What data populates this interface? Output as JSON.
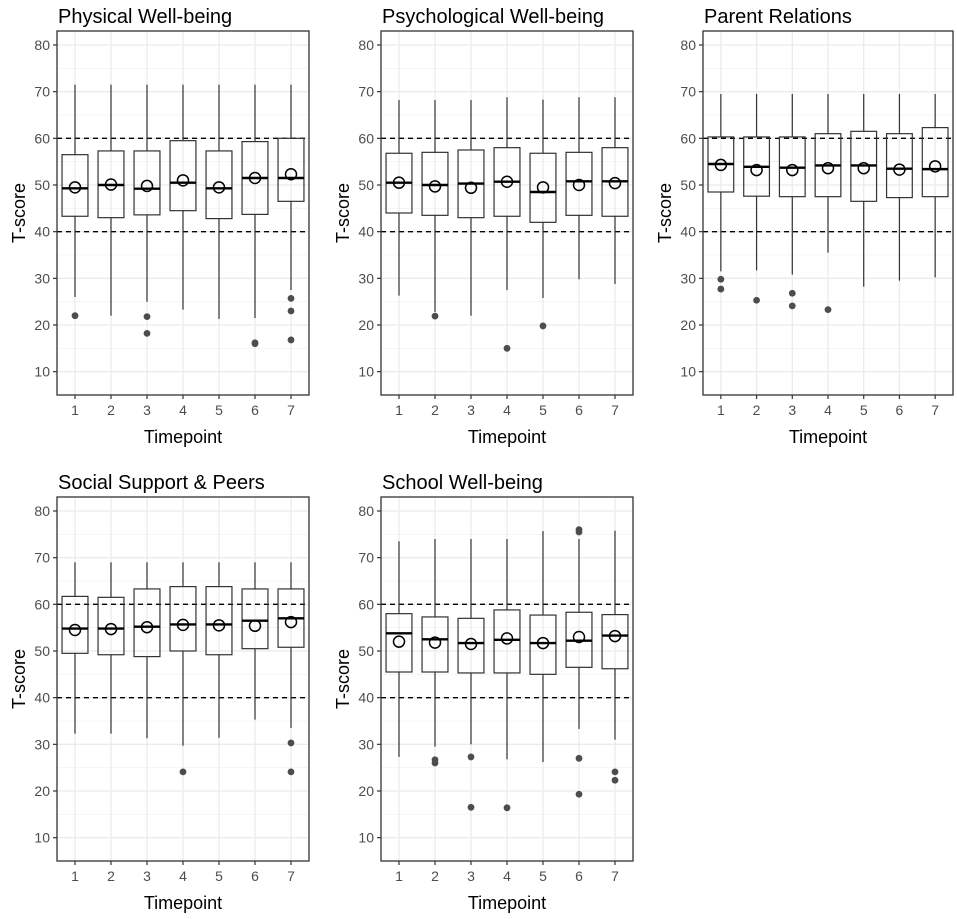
{
  "chart_data": [
    {
      "type": "boxplot",
      "title": "Physical Well-being",
      "xlabel": "Timepoint",
      "ylabel": "T-score",
      "categories": [
        "1",
        "2",
        "3",
        "4",
        "5",
        "6",
        "7"
      ],
      "ylim": [
        5,
        83
      ],
      "yticks": [
        10,
        20,
        30,
        40,
        50,
        60,
        70,
        80
      ],
      "reference_lines": [
        40,
        60
      ],
      "boxes": [
        {
          "x": "1",
          "whisker_low": 26,
          "q1": 43.3,
          "median": 49.3,
          "q3": 56.5,
          "whisker_high": 71.5,
          "mean": 49.5,
          "outliers": [
            22
          ]
        },
        {
          "x": "2",
          "whisker_low": 22,
          "q1": 43,
          "median": 50,
          "q3": 57.3,
          "whisker_high": 71.5,
          "mean": 50.1,
          "outliers": []
        },
        {
          "x": "3",
          "whisker_low": 25,
          "q1": 43.6,
          "median": 49.2,
          "q3": 57.3,
          "whisker_high": 71.5,
          "mean": 49.8,
          "outliers": [
            21.8,
            18.2
          ]
        },
        {
          "x": "4",
          "whisker_low": 23.3,
          "q1": 44.5,
          "median": 50.5,
          "q3": 59.5,
          "whisker_high": 71.5,
          "mean": 51,
          "outliers": []
        },
        {
          "x": "5",
          "whisker_low": 21.3,
          "q1": 42.8,
          "median": 49.3,
          "q3": 57.3,
          "whisker_high": 71.5,
          "mean": 49.5,
          "outliers": []
        },
        {
          "x": "6",
          "whisker_low": 21.5,
          "q1": 43.7,
          "median": 51.5,
          "q3": 59.3,
          "whisker_high": 71.5,
          "mean": 51.5,
          "outliers": [
            16.2,
            16
          ]
        },
        {
          "x": "7",
          "whisker_low": 27.5,
          "q1": 46.5,
          "median": 51.5,
          "q3": 60,
          "whisker_high": 71.5,
          "mean": 52.3,
          "outliers": [
            25.7,
            23,
            16.8
          ]
        }
      ]
    },
    {
      "type": "boxplot",
      "title": "Psychological Well-being",
      "xlabel": "Timepoint",
      "ylabel": "T-score",
      "categories": [
        "1",
        "2",
        "3",
        "4",
        "5",
        "6",
        "7"
      ],
      "ylim": [
        5,
        83
      ],
      "yticks": [
        10,
        20,
        30,
        40,
        50,
        60,
        70,
        80
      ],
      "reference_lines": [
        40,
        60
      ],
      "boxes": [
        {
          "x": "1",
          "whisker_low": 26.3,
          "q1": 44,
          "median": 50.5,
          "q3": 56.8,
          "whisker_high": 68.2,
          "mean": 50.5,
          "outliers": []
        },
        {
          "x": "2",
          "whisker_low": 22.8,
          "q1": 43.5,
          "median": 50,
          "q3": 57,
          "whisker_high": 68.2,
          "mean": 49.7,
          "outliers": [
            21.9
          ]
        },
        {
          "x": "3",
          "whisker_low": 22,
          "q1": 43,
          "median": 50.3,
          "q3": 57.5,
          "whisker_high": 68.2,
          "mean": 49.4,
          "outliers": []
        },
        {
          "x": "4",
          "whisker_low": 27.5,
          "q1": 43.3,
          "median": 50.7,
          "q3": 58,
          "whisker_high": 68.8,
          "mean": 50.7,
          "outliers": [
            15
          ]
        },
        {
          "x": "5",
          "whisker_low": 25.8,
          "q1": 42,
          "median": 48.5,
          "q3": 56.8,
          "whisker_high": 68.3,
          "mean": 49.5,
          "outliers": [
            19.8
          ]
        },
        {
          "x": "6",
          "whisker_low": 29.8,
          "q1": 43.5,
          "median": 50.8,
          "q3": 57,
          "whisker_high": 68.8,
          "mean": 50,
          "outliers": []
        },
        {
          "x": "7",
          "whisker_low": 28.8,
          "q1": 43.3,
          "median": 50.8,
          "q3": 58,
          "whisker_high": 68.8,
          "mean": 50.4,
          "outliers": []
        }
      ]
    },
    {
      "type": "boxplot",
      "title": "Parent Relations",
      "xlabel": "Timepoint",
      "ylabel": "T-score",
      "categories": [
        "1",
        "2",
        "3",
        "4",
        "5",
        "6",
        "7"
      ],
      "ylim": [
        5,
        83
      ],
      "yticks": [
        10,
        20,
        30,
        40,
        50,
        60,
        70,
        80
      ],
      "reference_lines": [
        40,
        60
      ],
      "boxes": [
        {
          "x": "1",
          "whisker_low": 31.5,
          "q1": 48.5,
          "median": 54.5,
          "q3": 60.3,
          "whisker_high": 69.5,
          "mean": 54.3,
          "outliers": [
            29.8,
            27.7
          ]
        },
        {
          "x": "2",
          "whisker_low": 31.7,
          "q1": 47.6,
          "median": 53.9,
          "q3": 60.3,
          "whisker_high": 69.5,
          "mean": 53.2,
          "outliers": [
            25.3
          ]
        },
        {
          "x": "3",
          "whisker_low": 30.8,
          "q1": 47.5,
          "median": 53.7,
          "q3": 60.3,
          "whisker_high": 69.5,
          "mean": 53.2,
          "outliers": [
            26.8,
            24.1
          ]
        },
        {
          "x": "4",
          "whisker_low": 35.5,
          "q1": 47.5,
          "median": 54.2,
          "q3": 61,
          "whisker_high": 69.5,
          "mean": 53.6,
          "outliers": [
            23.3
          ]
        },
        {
          "x": "5",
          "whisker_low": 28.2,
          "q1": 46.5,
          "median": 54.2,
          "q3": 61.5,
          "whisker_high": 69.5,
          "mean": 53.6,
          "outliers": []
        },
        {
          "x": "6",
          "whisker_low": 29.5,
          "q1": 47.3,
          "median": 53.5,
          "q3": 61,
          "whisker_high": 69.5,
          "mean": 53.3,
          "outliers": []
        },
        {
          "x": "7",
          "whisker_low": 30.2,
          "q1": 47.5,
          "median": 53.4,
          "q3": 62.3,
          "whisker_high": 69.5,
          "mean": 54,
          "outliers": []
        }
      ]
    },
    {
      "type": "boxplot",
      "title": "Social Support & Peers",
      "xlabel": "Timepoint",
      "ylabel": "T-score",
      "categories": [
        "1",
        "2",
        "3",
        "4",
        "5",
        "6",
        "7"
      ],
      "ylim": [
        5,
        83
      ],
      "yticks": [
        10,
        20,
        30,
        40,
        50,
        60,
        70,
        80
      ],
      "reference_lines": [
        40,
        60
      ],
      "boxes": [
        {
          "x": "1",
          "whisker_low": 32.3,
          "q1": 49.5,
          "median": 54.8,
          "q3": 61.7,
          "whisker_high": 69,
          "mean": 54.5,
          "outliers": []
        },
        {
          "x": "2",
          "whisker_low": 32.3,
          "q1": 49.2,
          "median": 54.8,
          "q3": 61.5,
          "whisker_high": 69,
          "mean": 54.7,
          "outliers": []
        },
        {
          "x": "3",
          "whisker_low": 31.3,
          "q1": 48.8,
          "median": 55.2,
          "q3": 63.3,
          "whisker_high": 69,
          "mean": 55.1,
          "outliers": []
        },
        {
          "x": "4",
          "whisker_low": 29.7,
          "q1": 50,
          "median": 55.7,
          "q3": 63.8,
          "whisker_high": 69,
          "mean": 55.6,
          "outliers": [
            24.1
          ]
        },
        {
          "x": "5",
          "whisker_low": 31.4,
          "q1": 49.2,
          "median": 55.7,
          "q3": 63.8,
          "whisker_high": 69,
          "mean": 55.5,
          "outliers": []
        },
        {
          "x": "6",
          "whisker_low": 35.3,
          "q1": 50.5,
          "median": 56.5,
          "q3": 63.3,
          "whisker_high": 69,
          "mean": 55.4,
          "outliers": []
        },
        {
          "x": "7",
          "whisker_low": 33.5,
          "q1": 50.8,
          "median": 57,
          "q3": 63.3,
          "whisker_high": 69,
          "mean": 56.2,
          "outliers": [
            30.3,
            24.1
          ]
        }
      ]
    },
    {
      "type": "boxplot",
      "title": "School Well-being",
      "xlabel": "Timepoint",
      "ylabel": "T-score",
      "categories": [
        "1",
        "2",
        "3",
        "4",
        "5",
        "6",
        "7"
      ],
      "ylim": [
        5,
        83
      ],
      "yticks": [
        10,
        20,
        30,
        40,
        50,
        60,
        70,
        80
      ],
      "reference_lines": [
        40,
        60
      ],
      "boxes": [
        {
          "x": "1",
          "whisker_low": 27.3,
          "q1": 45.5,
          "median": 53.8,
          "q3": 58,
          "whisker_high": 73.5,
          "mean": 52,
          "outliers": []
        },
        {
          "x": "2",
          "whisker_low": 29.5,
          "q1": 45.5,
          "median": 52.5,
          "q3": 57.3,
          "whisker_high": 74,
          "mean": 51.8,
          "outliers": [
            26.7,
            26
          ]
        },
        {
          "x": "3",
          "whisker_low": 30,
          "q1": 45.3,
          "median": 51.7,
          "q3": 57,
          "whisker_high": 74,
          "mean": 51.5,
          "outliers": [
            27.3,
            16.5
          ]
        },
        {
          "x": "4",
          "whisker_low": 26.8,
          "q1": 45.3,
          "median": 52.4,
          "q3": 58.8,
          "whisker_high": 74,
          "mean": 52.7,
          "outliers": [
            16.4
          ]
        },
        {
          "x": "5",
          "whisker_low": 26.2,
          "q1": 45,
          "median": 51.7,
          "q3": 57.7,
          "whisker_high": 75.7,
          "mean": 51.7,
          "outliers": []
        },
        {
          "x": "6",
          "whisker_low": 33.3,
          "q1": 46.5,
          "median": 52.2,
          "q3": 58.3,
          "whisker_high": 74,
          "mean": 53,
          "outliers": [
            76,
            75.5,
            27,
            19.3
          ]
        },
        {
          "x": "7",
          "whisker_low": 31,
          "q1": 46.2,
          "median": 53.3,
          "q3": 57.8,
          "whisker_high": 75.8,
          "mean": 53.2,
          "outliers": [
            24.1,
            22.3
          ]
        }
      ]
    }
  ]
}
